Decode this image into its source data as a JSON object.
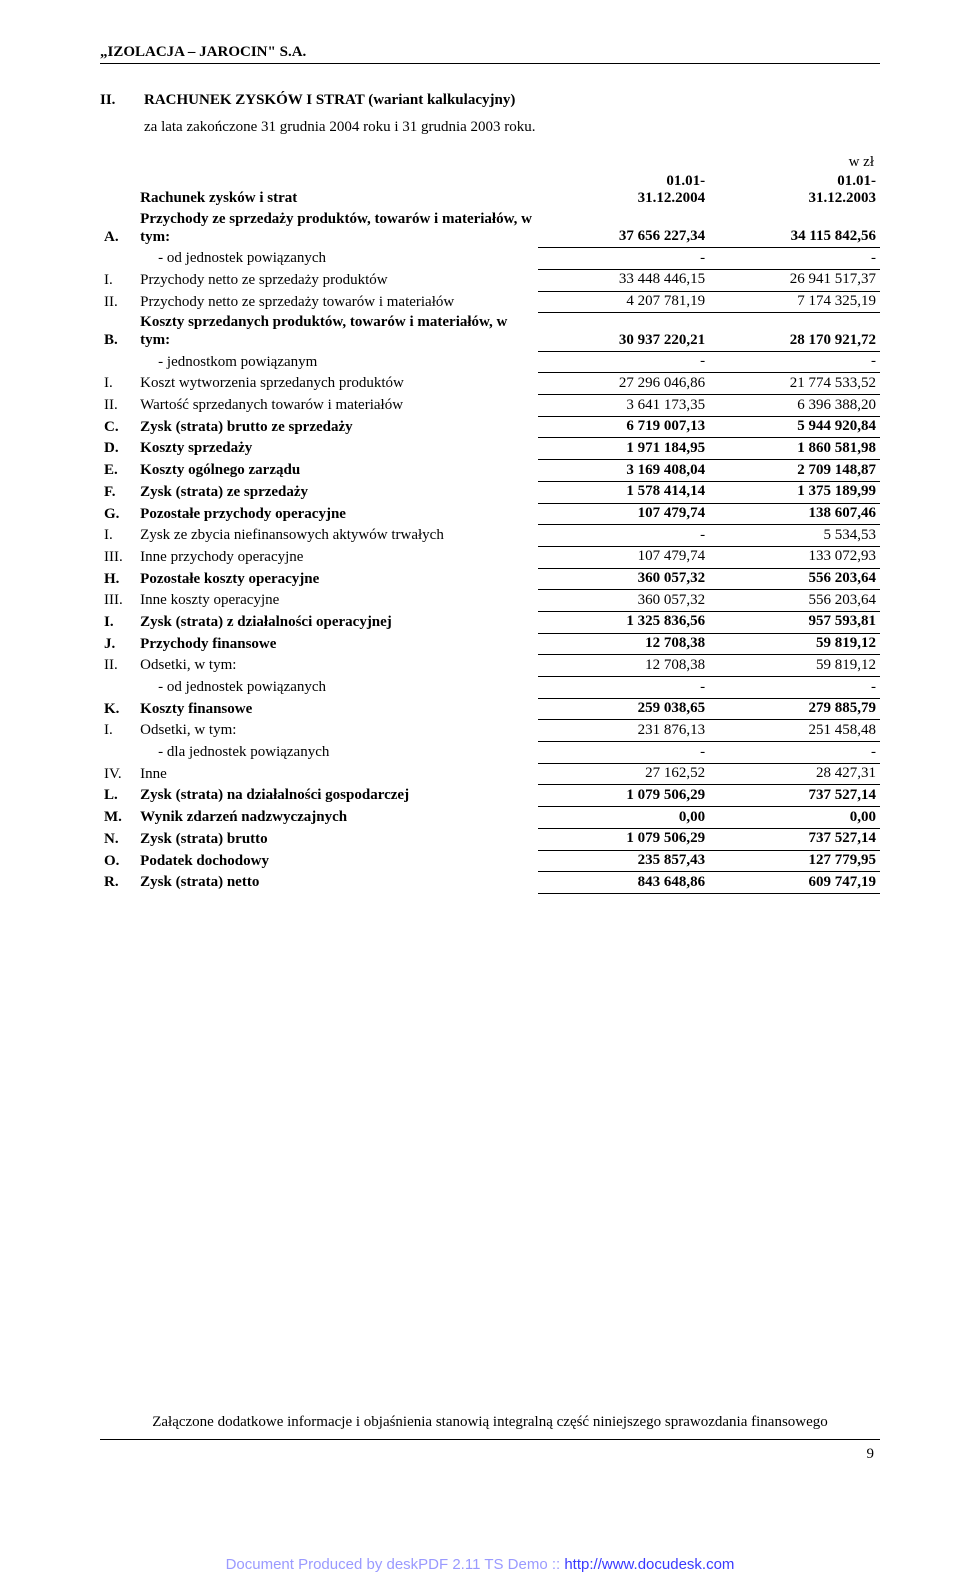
{
  "company_header": "„IZOLACJA – JAROCIN\" S.A.",
  "section_roman": "II.",
  "section_title": "RACHUNEK ZYSKÓW I STRAT (wariant kalkulacyjny)",
  "subtitle": "za lata zakończone 31 grudnia 2004 roku i 31 grudnia 2003 roku.",
  "unit_label": "w zł",
  "col_headers": {
    "statement_label": "Rachunek zysków i strat",
    "period1": "01.01-31.12.2004",
    "period2": "01.01-31.12.2003"
  },
  "rows": [
    {
      "id": "A.",
      "desc": "Przychody ze sprzedaży produktów, towarów i materiałów, w tym:",
      "v1": "37 656 227,34",
      "v2": "34 115 842,56",
      "bold": true
    },
    {
      "id": "",
      "desc": "- od jednostek powiązanych",
      "v1": "-",
      "v2": "-",
      "indent": true
    },
    {
      "id": "I.",
      "desc": "Przychody netto ze sprzedaży produktów",
      "v1": "33 448 446,15",
      "v2": "26 941 517,37"
    },
    {
      "id": "II.",
      "desc": "Przychody netto ze sprzedaży towarów i materiałów",
      "v1": "4 207 781,19",
      "v2": "7 174 325,19"
    },
    {
      "id": "B.",
      "desc": "Koszty sprzedanych produktów, towarów i materiałów, w tym:",
      "v1": "30 937 220,21",
      "v2": "28 170 921,72",
      "bold": true
    },
    {
      "id": "",
      "desc": "- jednostkom powiązanym",
      "v1": "-",
      "v2": "-",
      "indent": true
    },
    {
      "id": "I.",
      "desc": "Koszt wytworzenia sprzedanych produktów",
      "v1": "27 296 046,86",
      "v2": "21 774 533,52"
    },
    {
      "id": "II.",
      "desc": "Wartość sprzedanych towarów i materiałów",
      "v1": "3 641 173,35",
      "v2": "6 396 388,20"
    },
    {
      "id": "C.",
      "desc": "Zysk (strata) brutto ze sprzedaży",
      "v1": "6 719 007,13",
      "v2": "5 944 920,84",
      "bold": true
    },
    {
      "id": "D.",
      "desc": "Koszty sprzedaży",
      "v1": "1 971 184,95",
      "v2": "1 860 581,98",
      "bold": true
    },
    {
      "id": "E.",
      "desc": "Koszty ogólnego zarządu",
      "v1": "3 169 408,04",
      "v2": "2 709 148,87",
      "bold": true
    },
    {
      "id": "F.",
      "desc": "Zysk (strata) ze sprzedaży",
      "v1": "1 578 414,14",
      "v2": "1 375 189,99",
      "bold": true
    },
    {
      "id": "G.",
      "desc": "Pozostałe przychody operacyjne",
      "v1": "107 479,74",
      "v2": "138 607,46",
      "bold": true
    },
    {
      "id": "I.",
      "desc": "Zysk ze zbycia niefinansowych aktywów trwałych",
      "v1": "-",
      "v2": "5 534,53"
    },
    {
      "id": "III.",
      "desc": "Inne przychody operacyjne",
      "v1": "107 479,74",
      "v2": "133 072,93"
    },
    {
      "id": "H.",
      "desc": "Pozostałe koszty operacyjne",
      "v1": "360 057,32",
      "v2": "556 203,64",
      "bold": true
    },
    {
      "id": "III.",
      "desc": "Inne koszty operacyjne",
      "v1": "360 057,32",
      "v2": "556 203,64"
    },
    {
      "id": "I.",
      "desc": "Zysk (strata) z działalności operacyjnej",
      "v1": "1 325 836,56",
      "v2": "957 593,81",
      "bold": true
    },
    {
      "id": "J.",
      "desc": "Przychody finansowe",
      "v1": "12 708,38",
      "v2": "59 819,12",
      "bold": true
    },
    {
      "id": "II.",
      "desc": "Odsetki, w tym:",
      "v1": "12 708,38",
      "v2": "59 819,12"
    },
    {
      "id": "",
      "desc": "- od jednostek powiązanych",
      "v1": "-",
      "v2": "-",
      "indent": true
    },
    {
      "id": "K.",
      "desc": "Koszty finansowe",
      "v1": "259 038,65",
      "v2": "279 885,79",
      "bold": true
    },
    {
      "id": "I.",
      "desc": "Odsetki, w tym:",
      "v1": "231 876,13",
      "v2": "251 458,48"
    },
    {
      "id": "",
      "desc": "- dla jednostek powiązanych",
      "v1": "-",
      "v2": "-",
      "indent": true
    },
    {
      "id": "IV.",
      "desc": "Inne",
      "v1": "27 162,52",
      "v2": "28 427,31"
    },
    {
      "id": "L.",
      "desc": "Zysk (strata) na działalności gospodarczej",
      "v1": "1 079 506,29",
      "v2": "737 527,14",
      "bold": true
    },
    {
      "id": "M.",
      "desc": "Wynik zdarzeń nadzwyczajnych",
      "v1": "0,00",
      "v2": "0,00",
      "bold": true
    },
    {
      "id": "N.",
      "desc": "Zysk (strata) brutto",
      "v1": "1 079 506,29",
      "v2": "737 527,14",
      "bold": true
    },
    {
      "id": "O.",
      "desc": "Podatek dochodowy",
      "v1": "235 857,43",
      "v2": "127 779,95",
      "bold": true
    },
    {
      "id": "R.",
      "desc": "Zysk (strata) netto",
      "v1": "843 648,86",
      "v2": "609 747,19",
      "bold": true
    }
  ],
  "closing_note": "Załączone dodatkowe informacje i objaśnienia stanowią integralną część niniejszego sprawozdania finansowego",
  "page_number": "9",
  "watermark_prefix": "Document Produced by deskPDF 2.11 TS Demo :: ",
  "watermark_url": "http://www.docudesk.com"
}
